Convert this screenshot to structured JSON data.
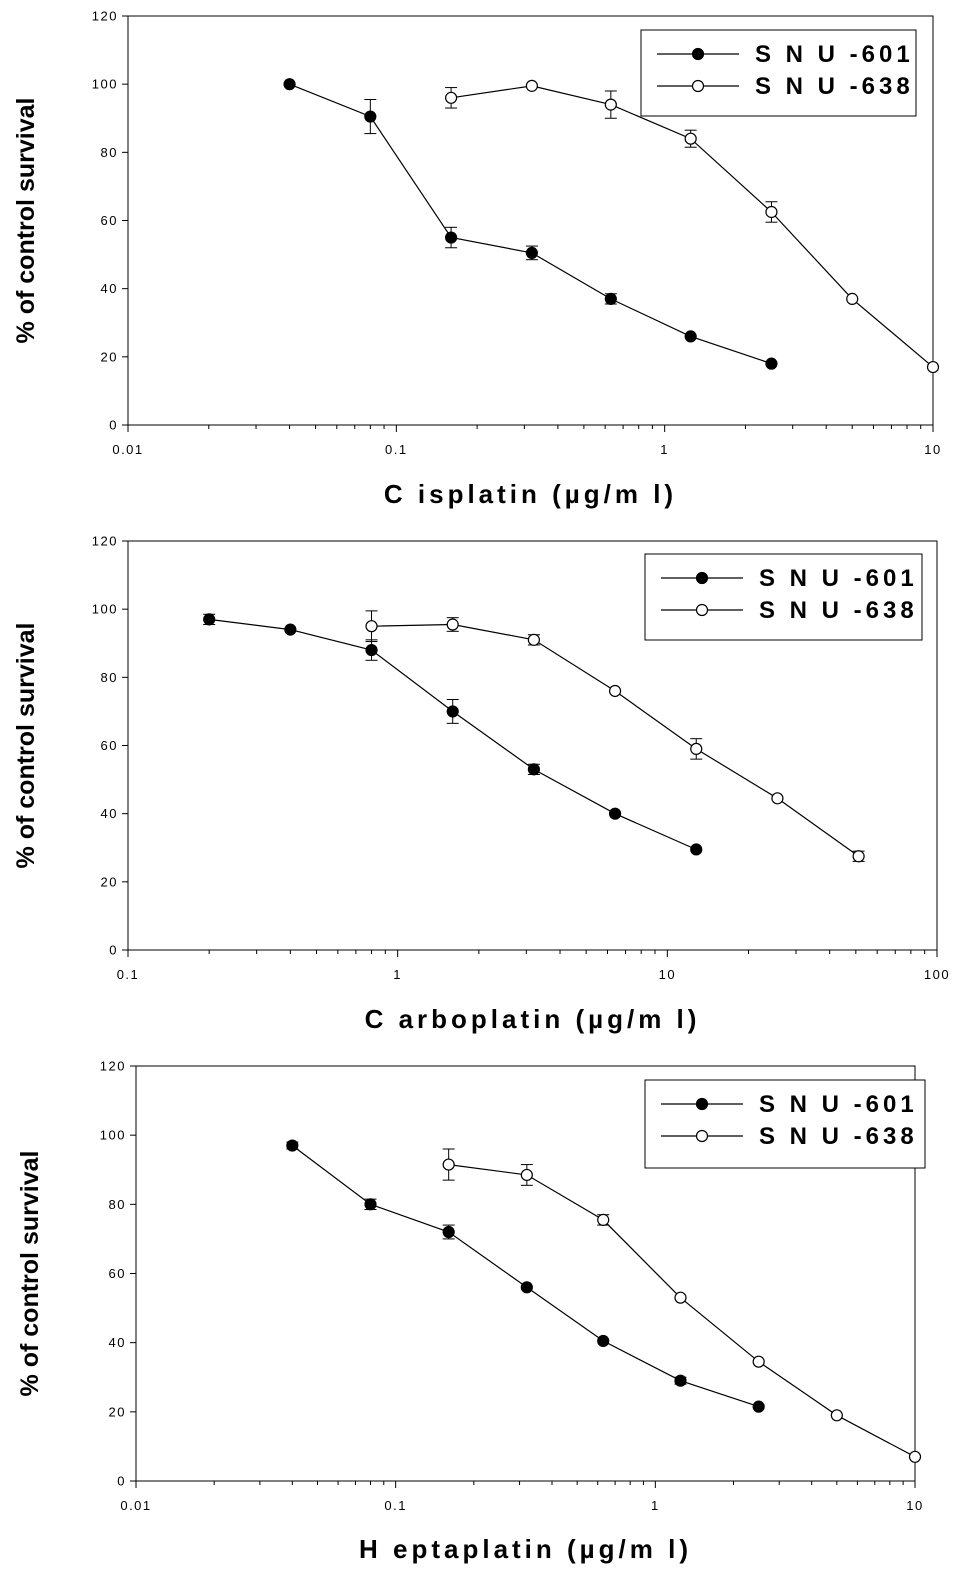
{
  "figure": {
    "colors": {
      "axis": "#000000",
      "marker_filled": "#000000",
      "marker_open": "#ffffff",
      "background": "#ffffff"
    }
  },
  "chart_data": [
    {
      "type": "line",
      "xscale": "log",
      "xlim": [
        0.01,
        10
      ],
      "ylim": [
        0,
        120
      ],
      "xticks": [
        0.01,
        0.1,
        1,
        10
      ],
      "xtick_labels": [
        "0.01",
        "0.1",
        "1",
        "10"
      ],
      "yticks": [
        0,
        20,
        40,
        60,
        80,
        100,
        120
      ],
      "ytick_labels": [
        "0",
        "20",
        "40",
        "60",
        "80",
        "100",
        "120"
      ],
      "xlabel": "C isplatin  (µg/m l)",
      "ylabel": "% of control survival",
      "legend": "top-right",
      "grid": false,
      "series": [
        {
          "name": "S N U -601",
          "marker": "filled-circle",
          "x": [
            0.04,
            0.08,
            0.16,
            0.32,
            0.63,
            1.25,
            2.5
          ],
          "y": [
            100,
            90.5,
            55,
            50.5,
            37,
            26,
            18
          ],
          "err": [
            0,
            5,
            3,
            2,
            1.5,
            0,
            0
          ]
        },
        {
          "name": "S N U -638",
          "marker": "open-circle",
          "x": [
            0.16,
            0.32,
            0.63,
            1.25,
            2.5,
            5,
            10
          ],
          "y": [
            96,
            99.5,
            94,
            84,
            62.5,
            37,
            17
          ],
          "err": [
            3,
            0,
            4,
            2.5,
            3,
            0,
            0
          ]
        }
      ]
    },
    {
      "type": "line",
      "xscale": "log",
      "xlim": [
        0.1,
        100
      ],
      "ylim": [
        0,
        120
      ],
      "xticks": [
        0.1,
        1,
        10,
        100
      ],
      "xtick_labels": [
        "0.1",
        "1",
        "10",
        "100"
      ],
      "yticks": [
        0,
        20,
        40,
        60,
        80,
        100,
        120
      ],
      "ytick_labels": [
        "0",
        "20",
        "40",
        "60",
        "80",
        "100",
        "120"
      ],
      "xlabel": "C arboplatin  (µg/m l)",
      "ylabel": "% of control survival",
      "legend": "top-right",
      "grid": false,
      "series": [
        {
          "name": "S N U -601",
          "marker": "filled-circle",
          "x": [
            0.2,
            0.4,
            0.8,
            1.6,
            3.2,
            6.4,
            12.8
          ],
          "y": [
            97,
            94,
            88,
            70,
            53,
            40,
            29.5
          ],
          "err": [
            1.5,
            0,
            3,
            3.5,
            1.5,
            0,
            0
          ]
        },
        {
          "name": "S N U -638",
          "marker": "open-circle",
          "x": [
            0.8,
            1.6,
            3.2,
            6.4,
            12.8,
            25.6,
            51.2
          ],
          "y": [
            95,
            95.5,
            91,
            76,
            59,
            44.5,
            27.5
          ],
          "err": [
            4.5,
            2,
            1.5,
            0,
            3,
            0,
            1.5
          ]
        }
      ]
    },
    {
      "type": "line",
      "xscale": "log",
      "xlim": [
        0.01,
        10
      ],
      "ylim": [
        0,
        120
      ],
      "xticks": [
        0.01,
        0.1,
        1,
        10
      ],
      "xtick_labels": [
        "0.01",
        "0.1",
        "1",
        "10"
      ],
      "yticks": [
        0,
        20,
        40,
        60,
        80,
        100,
        120
      ],
      "ytick_labels": [
        "0",
        "20",
        "40",
        "60",
        "80",
        "100",
        "120"
      ],
      "xlabel": "H eptaplatin  (µg/m l)",
      "ylabel": "% of control survival",
      "legend": "top-right",
      "grid": false,
      "series": [
        {
          "name": "S N U -601",
          "marker": "filled-circle",
          "x": [
            0.04,
            0.08,
            0.16,
            0.32,
            0.63,
            1.25,
            2.5
          ],
          "y": [
            97,
            80,
            72,
            56,
            40.5,
            29,
            21.5
          ],
          "err": [
            1,
            1.5,
            2,
            0,
            0,
            1,
            0
          ]
        },
        {
          "name": "S N U -638",
          "marker": "open-circle",
          "x": [
            0.16,
            0.32,
            0.63,
            1.25,
            2.5,
            5,
            10
          ],
          "y": [
            91.5,
            88.5,
            75.5,
            53,
            34.5,
            19,
            7
          ],
          "err": [
            4.5,
            3,
            1.5,
            0,
            0,
            0,
            0
          ]
        }
      ]
    }
  ]
}
